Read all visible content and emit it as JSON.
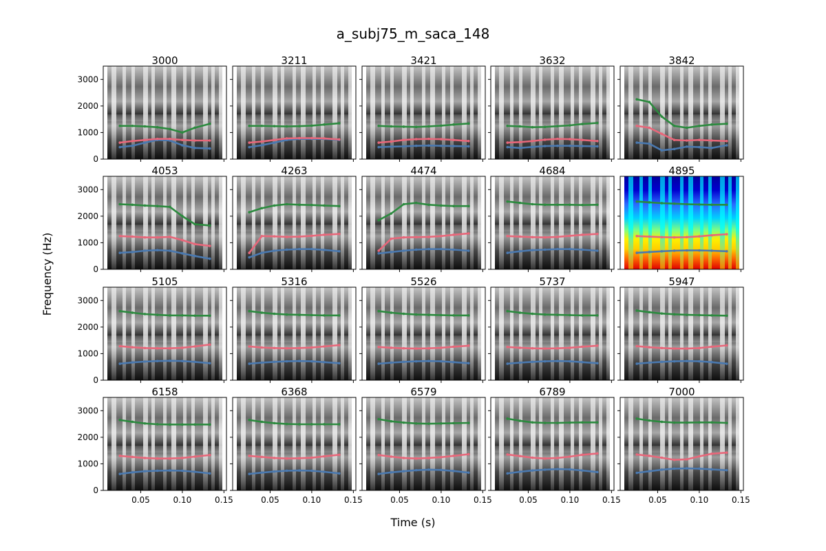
{
  "chart_data": {
    "type": "line",
    "title": "a_subj75_m_saca_148",
    "xlabel": "Time (s)",
    "ylabel": "Frequency (Hz)",
    "xlim": [
      0.005,
      0.153
    ],
    "ylim": [
      0,
      3500
    ],
    "x_ticks": [
      0.05,
      0.1,
      0.15
    ],
    "x_tick_labels": [
      "0.05",
      "0.10",
      "0.15"
    ],
    "y_ticks": [
      0,
      1000,
      2000,
      3000
    ],
    "y_tick_labels": [
      "0",
      "1000",
      "2000",
      "3000"
    ],
    "grid": false,
    "layout": "4 rows x 5 columns of small-multiple spectrograms with formant tracks",
    "colors": {
      "F1": "#4a79b0",
      "F2": "#e8677a",
      "F3": "#2b8a3e"
    },
    "x": [
      0.025,
      0.04,
      0.055,
      0.07,
      0.085,
      0.1,
      0.115,
      0.133
    ],
    "panels": [
      {
        "title": "3000",
        "colormap": "gray",
        "series": [
          {
            "values": [
              450,
              500,
              620,
              720,
              700,
              520,
              420,
              400
            ]
          },
          {
            "values": [
              620,
              680,
              720,
              760,
              760,
              720,
              700,
              700
            ]
          },
          {
            "values": [
              1250,
              1250,
              1230,
              1200,
              1130,
              1000,
              1180,
              1330
            ]
          }
        ]
      },
      {
        "title": "3211",
        "colormap": "gray",
        "series": [
          {
            "values": [
              450,
              520,
              620,
              720,
              760,
              760,
              760,
              720
            ]
          },
          {
            "values": [
              620,
              660,
              720,
              780,
              790,
              790,
              780,
              740
            ]
          },
          {
            "values": [
              1250,
              1250,
              1240,
              1230,
              1240,
              1260,
              1300,
              1350
            ]
          }
        ]
      },
      {
        "title": "3421",
        "colormap": "gray",
        "series": [
          {
            "values": [
              450,
              470,
              480,
              500,
              510,
              500,
              490,
              480
            ]
          },
          {
            "values": [
              620,
              660,
              720,
              750,
              760,
              750,
              720,
              680
            ]
          },
          {
            "values": [
              1250,
              1230,
              1220,
              1210,
              1230,
              1260,
              1300,
              1340
            ]
          }
        ]
      },
      {
        "title": "3632",
        "colormap": "gray",
        "series": [
          {
            "values": [
              450,
              420,
              460,
              490,
              500,
              500,
              490,
              480
            ]
          },
          {
            "values": [
              620,
              640,
              680,
              730,
              760,
              750,
              720,
              680
            ]
          },
          {
            "values": [
              1250,
              1230,
              1200,
              1210,
              1240,
              1270,
              1320,
              1360
            ]
          }
        ]
      },
      {
        "title": "3842",
        "colormap": "gray",
        "series": [
          {
            "values": [
              620,
              580,
              330,
              380,
              470,
              450,
              420,
              520
            ]
          },
          {
            "values": [
              1250,
              1180,
              950,
              720,
              700,
              720,
              700,
              680
            ]
          },
          {
            "values": [
              2250,
              2150,
              1600,
              1250,
              1180,
              1250,
              1300,
              1330
            ]
          }
        ]
      },
      {
        "title": "4053",
        "colormap": "gray",
        "series": [
          {
            "values": [
              620,
              650,
              700,
              720,
              700,
              600,
              500,
              400
            ]
          },
          {
            "values": [
              1250,
              1230,
              1200,
              1200,
              1220,
              1100,
              950,
              880
            ]
          },
          {
            "values": [
              2450,
              2430,
              2400,
              2380,
              2350,
              2000,
              1700,
              1650
            ]
          }
        ]
      },
      {
        "title": "4263",
        "colormap": "gray",
        "series": [
          {
            "values": [
              450,
              620,
              700,
              740,
              760,
              760,
              730,
              680
            ]
          },
          {
            "values": [
              620,
              1250,
              1240,
              1220,
              1230,
              1260,
              1300,
              1330
            ]
          },
          {
            "values": [
              2150,
              2300,
              2400,
              2450,
              2430,
              2420,
              2400,
              2380
            ]
          }
        ]
      },
      {
        "title": "4474",
        "colormap": "gray",
        "series": [
          {
            "values": [
              600,
              650,
              700,
              740,
              760,
              760,
              740,
              700
            ]
          },
          {
            "values": [
              700,
              1150,
              1200,
              1210,
              1220,
              1250,
              1300,
              1350
            ]
          },
          {
            "values": [
              1850,
              2100,
              2450,
              2500,
              2430,
              2400,
              2380,
              2380
            ]
          }
        ]
      },
      {
        "title": "4684",
        "colormap": "gray",
        "series": [
          {
            "values": [
              620,
              680,
              720,
              740,
              760,
              760,
              740,
              700
            ]
          },
          {
            "values": [
              1250,
              1230,
              1210,
              1200,
              1220,
              1260,
              1300,
              1330
            ]
          },
          {
            "values": [
              2550,
              2500,
              2450,
              2430,
              2430,
              2430,
              2420,
              2430
            ]
          }
        ]
      },
      {
        "title": "4895",
        "colormap": "jet",
        "series": [
          {
            "values": [
              620,
              650,
              680,
              700,
              710,
              710,
              700,
              680
            ]
          },
          {
            "values": [
              1250,
              1230,
              1210,
              1200,
              1210,
              1240,
              1280,
              1320
            ]
          },
          {
            "values": [
              2550,
              2520,
              2490,
              2470,
              2450,
              2440,
              2430,
              2430
            ]
          }
        ]
      },
      {
        "title": "5105",
        "colormap": "gray",
        "series": [
          {
            "values": [
              620,
              670,
              700,
              720,
              730,
              720,
              690,
              640
            ]
          },
          {
            "values": [
              1280,
              1240,
              1210,
              1200,
              1200,
              1220,
              1270,
              1340
            ]
          },
          {
            "values": [
              2600,
              2540,
              2490,
              2460,
              2440,
              2440,
              2430,
              2430
            ]
          }
        ]
      },
      {
        "title": "5316",
        "colormap": "gray",
        "series": [
          {
            "values": [
              620,
              660,
              690,
              710,
              720,
              710,
              680,
              640
            ]
          },
          {
            "values": [
              1270,
              1230,
              1210,
              1200,
              1210,
              1230,
              1270,
              1320
            ]
          },
          {
            "values": [
              2600,
              2540,
              2500,
              2470,
              2460,
              2450,
              2440,
              2440
            ]
          }
        ]
      },
      {
        "title": "5526",
        "colormap": "gray",
        "series": [
          {
            "values": [
              620,
              660,
              690,
              710,
              720,
              710,
              680,
              640
            ]
          },
          {
            "values": [
              1250,
              1220,
              1200,
              1190,
              1200,
              1220,
              1260,
              1300
            ]
          },
          {
            "values": [
              2600,
              2540,
              2500,
              2470,
              2460,
              2450,
              2440,
              2440
            ]
          }
        ]
      },
      {
        "title": "5737",
        "colormap": "gray",
        "series": [
          {
            "values": [
              620,
              660,
              690,
              710,
              720,
              710,
              680,
              640
            ]
          },
          {
            "values": [
              1250,
              1220,
              1200,
              1190,
              1200,
              1220,
              1260,
              1300
            ]
          },
          {
            "values": [
              2600,
              2540,
              2500,
              2470,
              2460,
              2450,
              2440,
              2440
            ]
          }
        ]
      },
      {
        "title": "5947",
        "colormap": "gray",
        "series": [
          {
            "values": [
              620,
              660,
              690,
              710,
              720,
              710,
              680,
              620
            ]
          },
          {
            "values": [
              1280,
              1240,
              1210,
              1190,
              1190,
              1210,
              1260,
              1310
            ]
          },
          {
            "values": [
              2620,
              2560,
              2510,
              2480,
              2460,
              2450,
              2440,
              2430
            ]
          }
        ]
      },
      {
        "title": "6158",
        "colormap": "gray",
        "series": [
          {
            "values": [
              620,
              680,
              720,
              740,
              750,
              740,
              700,
              640
            ]
          },
          {
            "values": [
              1300,
              1260,
              1220,
              1200,
              1200,
              1220,
              1270,
              1330
            ]
          },
          {
            "values": [
              2650,
              2580,
              2520,
              2490,
              2480,
              2480,
              2480,
              2480
            ]
          }
        ]
      },
      {
        "title": "6368",
        "colormap": "gray",
        "series": [
          {
            "values": [
              620,
              670,
              710,
              740,
              750,
              740,
              700,
              640
            ]
          },
          {
            "values": [
              1300,
              1260,
              1220,
              1200,
              1210,
              1230,
              1280,
              1340
            ]
          },
          {
            "values": [
              2650,
              2580,
              2530,
              2500,
              2490,
              2490,
              2490,
              2490
            ]
          }
        ]
      },
      {
        "title": "6579",
        "colormap": "gray",
        "series": [
          {
            "values": [
              620,
              680,
              720,
              760,
              780,
              770,
              730,
              670
            ]
          },
          {
            "values": [
              1330,
              1270,
              1220,
              1200,
              1220,
              1250,
              1300,
              1360
            ]
          },
          {
            "values": [
              2680,
              2600,
              2550,
              2520,
              2510,
              2520,
              2530,
              2540
            ]
          }
        ]
      },
      {
        "title": "6789",
        "colormap": "gray",
        "series": [
          {
            "values": [
              640,
              700,
              750,
              780,
              800,
              790,
              750,
              690
            ]
          },
          {
            "values": [
              1350,
              1290,
              1230,
              1200,
              1220,
              1270,
              1340,
              1390
            ]
          },
          {
            "values": [
              2700,
              2620,
              2560,
              2540,
              2540,
              2550,
              2560,
              2560
            ]
          }
        ]
      },
      {
        "title": "7000",
        "colormap": "gray",
        "series": [
          {
            "values": [
              660,
              720,
              780,
              820,
              830,
              820,
              790,
              760
            ]
          },
          {
            "values": [
              1350,
              1300,
              1230,
              1150,
              1170,
              1280,
              1380,
              1420
            ]
          },
          {
            "values": [
              2700,
              2630,
              2580,
              2550,
              2550,
              2560,
              2560,
              2540
            ]
          }
        ]
      }
    ]
  }
}
